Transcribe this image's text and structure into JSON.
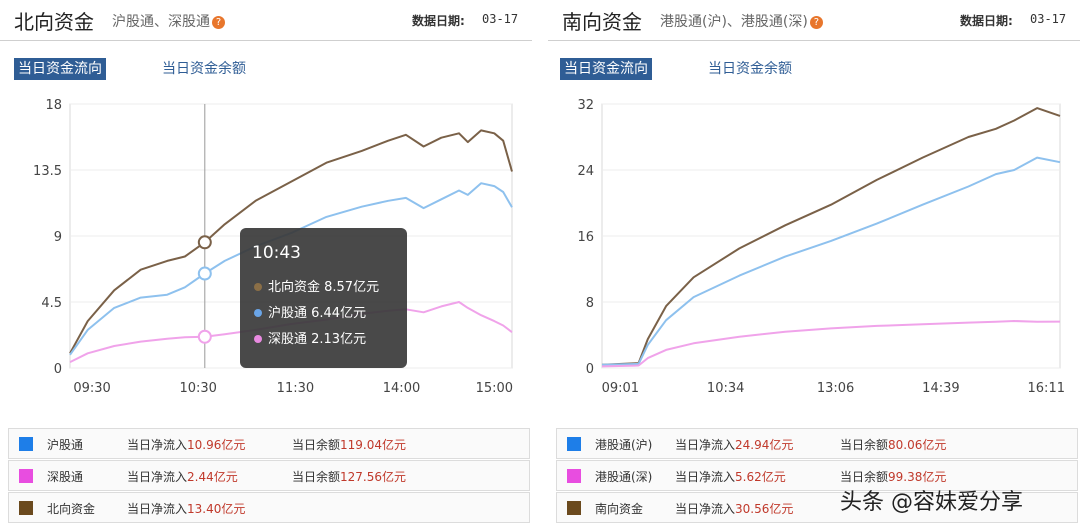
{
  "north": {
    "title": "北向资金",
    "subtitle": "沪股通、深股通",
    "date_label": "数据日期:",
    "date": "03-17",
    "tabs": [
      "当日资金流向",
      "当日资金余额"
    ],
    "tooltip": {
      "time": "10:43",
      "rows": [
        {
          "name": "北向资金",
          "value": "8.57亿元",
          "color": "#8b6f47"
        },
        {
          "name": "沪股通",
          "value": "6.44亿元",
          "color": "#6aa5e8"
        },
        {
          "name": "深股通",
          "value": "2.13亿元",
          "color": "#e88ae0"
        }
      ]
    },
    "legend": [
      {
        "name": "沪股通",
        "net_label": "当日净流入",
        "net_value": "10.96亿元",
        "bal_label": "当日余额",
        "bal_value": "119.04亿元",
        "color": "#1e7ee8"
      },
      {
        "name": "深股通",
        "net_label": "当日净流入",
        "net_value": "2.44亿元",
        "bal_label": "当日余额",
        "bal_value": "127.56亿元",
        "color": "#e84de0"
      },
      {
        "name": "北向资金",
        "net_label": "当日净流入",
        "net_value": "13.40亿元",
        "bal_label": "",
        "bal_value": "",
        "color": "#6b4a1e"
      }
    ]
  },
  "south": {
    "title": "南向资金",
    "subtitle": "港股通(沪)、港股通(深)",
    "date_label": "数据日期:",
    "date": "03-17",
    "tabs": [
      "当日资金流向",
      "当日资金余额"
    ],
    "legend": [
      {
        "name": "港股通(沪)",
        "net_label": "当日净流入",
        "net_value": "24.94亿元",
        "bal_label": "当日余额",
        "bal_value": "80.06亿元",
        "color": "#1e7ee8"
      },
      {
        "name": "港股通(深)",
        "net_label": "当日净流入",
        "net_value": "5.62亿元",
        "bal_label": "当日余额",
        "bal_value": "99.38亿元",
        "color": "#e84de0"
      },
      {
        "name": "南向资金",
        "net_label": "当日净流入",
        "net_value": "30.56亿元",
        "bal_label": "",
        "bal_value": "",
        "color": "#6b4a1e"
      }
    ]
  },
  "watermark": "头条 @容妹爱分享",
  "chart_data": [
    {
      "type": "line",
      "title": "北向资金",
      "xlabel": "",
      "ylabel": "",
      "x_ticks": [
        "09:30",
        "10:30",
        "11:30",
        "14:00",
        "15:00"
      ],
      "y_ticks": [
        0,
        4.5,
        9,
        13.5,
        18
      ],
      "ylim": [
        0,
        18
      ],
      "grid": true,
      "cursor_x": 0.305,
      "series": [
        {
          "name": "北向资金",
          "color": "#7a6148",
          "x": [
            0,
            0.04,
            0.1,
            0.16,
            0.22,
            0.26,
            0.305,
            0.35,
            0.42,
            0.5,
            0.58,
            0.66,
            0.72,
            0.76,
            0.8,
            0.84,
            0.88,
            0.9,
            0.93,
            0.96,
            0.98,
            1.0
          ],
          "values": [
            1.0,
            3.2,
            5.3,
            6.7,
            7.3,
            7.6,
            8.57,
            9.8,
            11.4,
            12.7,
            14.0,
            14.8,
            15.5,
            15.9,
            15.1,
            15.7,
            16.0,
            15.4,
            16.2,
            16.0,
            15.5,
            13.4
          ]
        },
        {
          "name": "沪股通",
          "color": "#8ec1ee",
          "x": [
            0,
            0.04,
            0.1,
            0.16,
            0.22,
            0.26,
            0.305,
            0.35,
            0.42,
            0.5,
            0.58,
            0.66,
            0.72,
            0.76,
            0.8,
            0.84,
            0.88,
            0.9,
            0.93,
            0.96,
            0.98,
            1.0
          ],
          "values": [
            0.9,
            2.6,
            4.1,
            4.8,
            5.0,
            5.5,
            6.44,
            7.3,
            8.3,
            9.2,
            10.3,
            11.0,
            11.4,
            11.6,
            10.9,
            11.5,
            12.1,
            11.8,
            12.6,
            12.4,
            12.0,
            10.96
          ]
        },
        {
          "name": "深股通",
          "color": "#f0a3ea",
          "x": [
            0,
            0.04,
            0.1,
            0.16,
            0.22,
            0.26,
            0.305,
            0.35,
            0.42,
            0.5,
            0.58,
            0.66,
            0.72,
            0.76,
            0.8,
            0.84,
            0.88,
            0.9,
            0.93,
            0.96,
            0.98,
            1.0
          ],
          "values": [
            0.4,
            1.0,
            1.5,
            1.8,
            2.0,
            2.1,
            2.13,
            2.3,
            2.6,
            3.0,
            3.3,
            3.7,
            3.9,
            4.0,
            3.8,
            4.2,
            4.5,
            4.1,
            3.6,
            3.2,
            2.9,
            2.44
          ]
        }
      ]
    },
    {
      "type": "line",
      "title": "南向资金",
      "xlabel": "",
      "ylabel": "",
      "x_ticks": [
        "09:01",
        "10:34",
        "13:06",
        "14:39",
        "16:11"
      ],
      "y_ticks": [
        0,
        8,
        16,
        24,
        32
      ],
      "ylim": [
        0,
        32
      ],
      "grid": true,
      "series": [
        {
          "name": "南向资金",
          "color": "#7a6148",
          "x": [
            0,
            0.08,
            0.1,
            0.14,
            0.2,
            0.3,
            0.4,
            0.5,
            0.6,
            0.7,
            0.8,
            0.86,
            0.9,
            0.95,
            1.0
          ],
          "values": [
            0.4,
            0.6,
            3.5,
            7.5,
            11.0,
            14.5,
            17.3,
            19.8,
            22.8,
            25.5,
            28.0,
            29.0,
            30.0,
            31.5,
            30.56
          ]
        },
        {
          "name": "港股通(沪)",
          "color": "#8ec1ee",
          "x": [
            0,
            0.08,
            0.1,
            0.14,
            0.2,
            0.3,
            0.4,
            0.5,
            0.6,
            0.7,
            0.8,
            0.86,
            0.9,
            0.95,
            1.0
          ],
          "values": [
            0.4,
            0.5,
            2.8,
            5.8,
            8.6,
            11.2,
            13.5,
            15.4,
            17.5,
            19.8,
            22.0,
            23.5,
            24.0,
            25.5,
            24.94
          ]
        },
        {
          "name": "港股通(深)",
          "color": "#f0a3ea",
          "x": [
            0,
            0.08,
            0.1,
            0.14,
            0.2,
            0.3,
            0.4,
            0.5,
            0.6,
            0.7,
            0.8,
            0.86,
            0.9,
            0.95,
            1.0
          ],
          "values": [
            0.2,
            0.3,
            1.2,
            2.2,
            3.0,
            3.8,
            4.4,
            4.8,
            5.1,
            5.3,
            5.5,
            5.6,
            5.7,
            5.6,
            5.62
          ]
        }
      ]
    }
  ]
}
